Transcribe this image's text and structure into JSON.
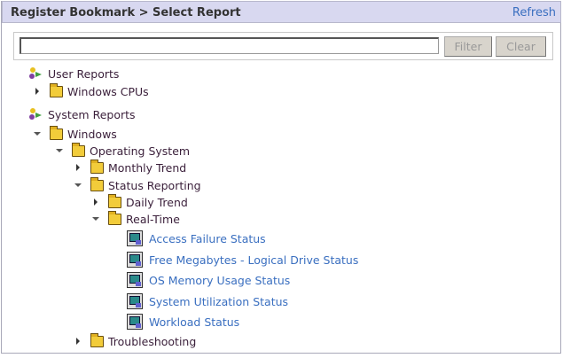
{
  "header": {
    "title": "Register Bookmark > Select Report",
    "refresh": "Refresh"
  },
  "filter": {
    "value": "",
    "filter_label": "Filter",
    "clear_label": "Clear"
  },
  "tree": {
    "user_reports": "User Reports",
    "windows_cpus": "Windows CPUs",
    "system_reports": "System Reports",
    "windows": "Windows",
    "operating_system": "Operating System",
    "monthly_trend": "Monthly Trend",
    "status_reporting": "Status Reporting",
    "daily_trend": "Daily Trend",
    "real_time": "Real-Time",
    "reports": [
      "Access Failure Status",
      "Free Megabytes - Logical Drive Status",
      "OS Memory Usage Status",
      "System Utilization Status",
      "Workload Status"
    ],
    "troubleshooting": "Troubleshooting"
  },
  "colors": {
    "header_bg": "#d8d8f0",
    "link": "#3a6fc0",
    "tree_text": "#3a1f3a"
  }
}
